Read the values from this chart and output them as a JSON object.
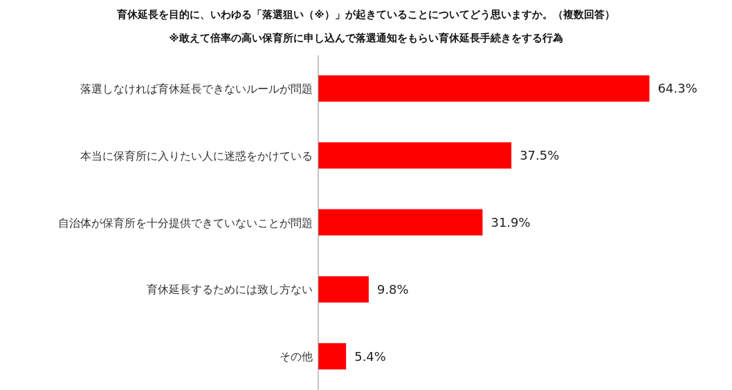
{
  "chart_data": {
    "type": "bar",
    "orientation": "horizontal",
    "title": "育休延長を目的に、いわゆる「落選狙い（※）」が起きていることについてどう思いますか。（複数回答）",
    "subtitle": "※敢えて倍率の高い保育所に申し込んで落選通知をもらい育休延長手続きをする行為",
    "categories": [
      "落選しなければ育休延長できないルールが問題",
      "本当に保育所に入りたい人に迷惑をかけている",
      "自治体が保育所を十分提供できていないことが問題",
      "育休延長するためには致し方ない",
      "その他"
    ],
    "values": [
      64.3,
      37.5,
      31.9,
      9.8,
      5.4
    ],
    "value_labels": [
      "64.3%",
      "37.5%",
      "31.9%",
      "9.8%",
      "5.4%"
    ],
    "color": "#ff0000",
    "grid": false,
    "legend": false
  }
}
